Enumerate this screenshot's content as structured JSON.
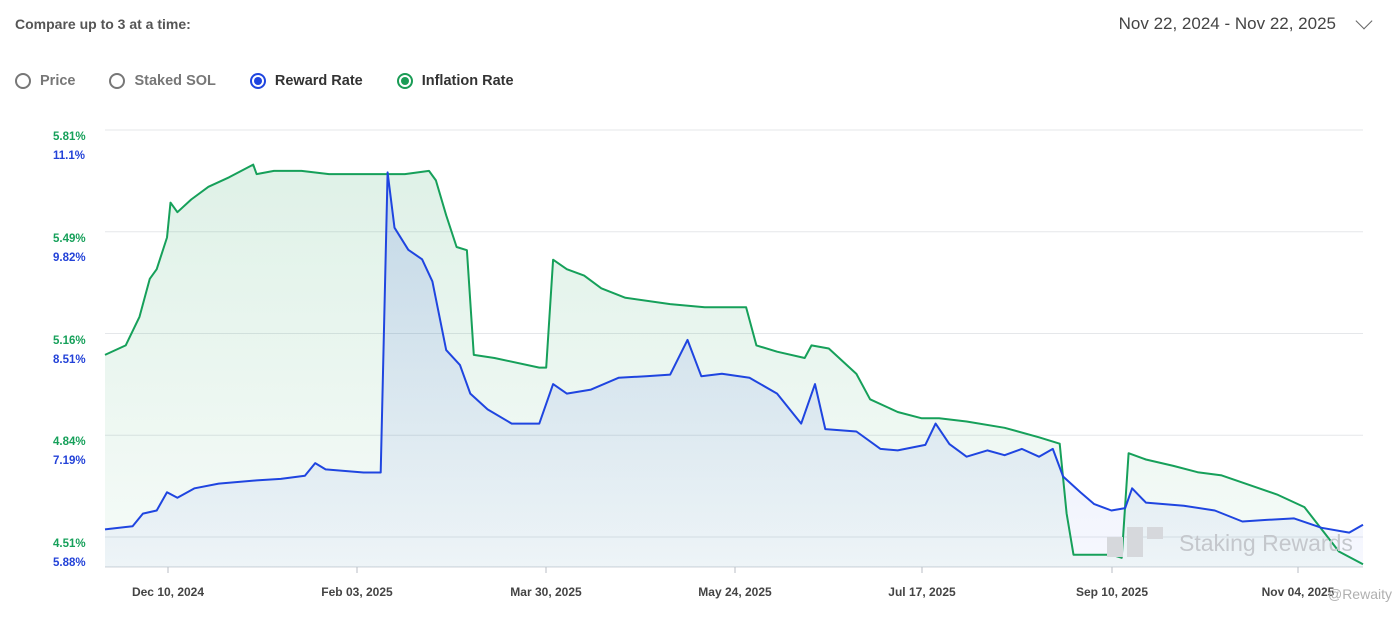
{
  "header": {
    "compare_label": "Compare up to 3 at a time:"
  },
  "date_range": {
    "text": "Nov 22, 2024 - Nov 22, 2025"
  },
  "toggles": [
    {
      "label": "Price",
      "checked": false
    },
    {
      "label": "Staked SOL",
      "checked": false
    },
    {
      "label": "Reward Rate",
      "checked": true,
      "color": "#1f45e0"
    },
    {
      "label": "Inflation Rate",
      "checked": true,
      "color": "#1a9c55"
    }
  ],
  "watermark": {
    "brand": "Staking Rewards",
    "handle": "@Rewaity"
  },
  "chart_data": {
    "type": "area",
    "x_ticks": [
      "Dec 10, 2024",
      "Feb 03, 2025",
      "Mar 30, 2025",
      "May 24, 2025",
      "Jul 17, 2025",
      "Sep 10, 2025",
      "Nov 04, 2025"
    ],
    "y_left_inflation_ticks": [
      "5.81%",
      "5.49%",
      "5.16%",
      "4.84%",
      "4.51%"
    ],
    "y_left_reward_ticks": [
      "11.1%",
      "9.82%",
      "8.51%",
      "7.19%",
      "5.88%"
    ],
    "inflation_ylim": [
      4.51,
      5.81
    ],
    "reward_ylim": [
      5.88,
      11.1
    ],
    "grid": true,
    "x_start": "2024-11-22",
    "x_end": "2025-11-22",
    "series": [
      {
        "name": "Inflation Rate",
        "color": "#16a05a",
        "points": [
          [
            "2024-11-22",
            5.16
          ],
          [
            "2024-11-28",
            5.19
          ],
          [
            "2024-12-02",
            5.28
          ],
          [
            "2024-12-05",
            5.4
          ],
          [
            "2024-12-07",
            5.43
          ],
          [
            "2024-12-10",
            5.53
          ],
          [
            "2024-12-11",
            5.64
          ],
          [
            "2024-12-13",
            5.61
          ],
          [
            "2024-12-17",
            5.65
          ],
          [
            "2024-12-22",
            5.69
          ],
          [
            "2024-12-28",
            5.72
          ],
          [
            "2025-01-04",
            5.76
          ],
          [
            "2025-01-05",
            5.73
          ],
          [
            "2025-01-10",
            5.74
          ],
          [
            "2025-01-18",
            5.74
          ],
          [
            "2025-01-26",
            5.73
          ],
          [
            "2025-02-03",
            5.73
          ],
          [
            "2025-02-10",
            5.73
          ],
          [
            "2025-02-17",
            5.73
          ],
          [
            "2025-02-24",
            5.74
          ],
          [
            "2025-02-26",
            5.71
          ],
          [
            "2025-03-01",
            5.6
          ],
          [
            "2025-03-04",
            5.5
          ],
          [
            "2025-03-07",
            5.49
          ],
          [
            "2025-03-09",
            5.16
          ],
          [
            "2025-03-15",
            5.15
          ],
          [
            "2025-03-28",
            5.12
          ],
          [
            "2025-03-30",
            5.12
          ],
          [
            "2025-04-01",
            5.46
          ],
          [
            "2025-04-05",
            5.43
          ],
          [
            "2025-04-10",
            5.41
          ],
          [
            "2025-04-15",
            5.37
          ],
          [
            "2025-04-22",
            5.34
          ],
          [
            "2025-05-05",
            5.32
          ],
          [
            "2025-05-15",
            5.31
          ],
          [
            "2025-05-27",
            5.31
          ],
          [
            "2025-05-30",
            5.19
          ],
          [
            "2025-06-05",
            5.17
          ],
          [
            "2025-06-13",
            5.15
          ],
          [
            "2025-06-15",
            5.19
          ],
          [
            "2025-06-20",
            5.18
          ],
          [
            "2025-06-28",
            5.1
          ],
          [
            "2025-07-02",
            5.02
          ],
          [
            "2025-07-10",
            4.98
          ],
          [
            "2025-07-17",
            4.96
          ],
          [
            "2025-07-22",
            4.96
          ],
          [
            "2025-07-30",
            4.95
          ],
          [
            "2025-08-10",
            4.93
          ],
          [
            "2025-08-20",
            4.9
          ],
          [
            "2025-08-26",
            4.88
          ],
          [
            "2025-08-28",
            4.66
          ],
          [
            "2025-08-30",
            4.53
          ],
          [
            "2025-09-10",
            4.53
          ],
          [
            "2025-09-13",
            4.52
          ],
          [
            "2025-09-15",
            4.85
          ],
          [
            "2025-09-20",
            4.83
          ],
          [
            "2025-09-28",
            4.81
          ],
          [
            "2025-10-05",
            4.79
          ],
          [
            "2025-10-12",
            4.78
          ],
          [
            "2025-10-20",
            4.75
          ],
          [
            "2025-10-28",
            4.72
          ],
          [
            "2025-11-05",
            4.68
          ],
          [
            "2025-11-15",
            4.54
          ],
          [
            "2025-11-22",
            4.5
          ]
        ]
      },
      {
        "name": "Reward Rate",
        "color": "#1f45e0",
        "points": [
          [
            "2024-11-22",
            6.28
          ],
          [
            "2024-11-30",
            6.32
          ],
          [
            "2024-12-03",
            6.48
          ],
          [
            "2024-12-07",
            6.52
          ],
          [
            "2024-12-10",
            6.75
          ],
          [
            "2024-12-13",
            6.68
          ],
          [
            "2024-12-18",
            6.8
          ],
          [
            "2024-12-25",
            6.86
          ],
          [
            "2025-01-05",
            6.9
          ],
          [
            "2025-01-12",
            6.92
          ],
          [
            "2025-01-19",
            6.96
          ],
          [
            "2025-01-22",
            7.12
          ],
          [
            "2025-01-25",
            7.04
          ],
          [
            "2025-02-05",
            7.0
          ],
          [
            "2025-02-10",
            7.0
          ],
          [
            "2025-02-12",
            10.8
          ],
          [
            "2025-02-14",
            10.1
          ],
          [
            "2025-02-18",
            9.82
          ],
          [
            "2025-02-22",
            9.7
          ],
          [
            "2025-02-25",
            9.42
          ],
          [
            "2025-03-01",
            8.55
          ],
          [
            "2025-03-05",
            8.36
          ],
          [
            "2025-03-08",
            8.0
          ],
          [
            "2025-03-13",
            7.8
          ],
          [
            "2025-03-20",
            7.62
          ],
          [
            "2025-03-28",
            7.62
          ],
          [
            "2025-04-01",
            8.12
          ],
          [
            "2025-04-05",
            8.0
          ],
          [
            "2025-04-12",
            8.05
          ],
          [
            "2025-04-20",
            8.2
          ],
          [
            "2025-04-28",
            8.22
          ],
          [
            "2025-05-05",
            8.24
          ],
          [
            "2025-05-10",
            8.68
          ],
          [
            "2025-05-14",
            8.22
          ],
          [
            "2025-05-20",
            8.25
          ],
          [
            "2025-05-28",
            8.2
          ],
          [
            "2025-06-05",
            8.0
          ],
          [
            "2025-06-12",
            7.62
          ],
          [
            "2025-06-16",
            8.12
          ],
          [
            "2025-06-19",
            7.55
          ],
          [
            "2025-06-28",
            7.52
          ],
          [
            "2025-07-05",
            7.3
          ],
          [
            "2025-07-10",
            7.28
          ],
          [
            "2025-07-18",
            7.35
          ],
          [
            "2025-07-21",
            7.62
          ],
          [
            "2025-07-25",
            7.36
          ],
          [
            "2025-07-30",
            7.2
          ],
          [
            "2025-08-05",
            7.28
          ],
          [
            "2025-08-10",
            7.22
          ],
          [
            "2025-08-15",
            7.3
          ],
          [
            "2025-08-20",
            7.2
          ],
          [
            "2025-08-24",
            7.3
          ],
          [
            "2025-08-27",
            6.95
          ],
          [
            "2025-09-01",
            6.75
          ],
          [
            "2025-09-05",
            6.6
          ],
          [
            "2025-09-10",
            6.52
          ],
          [
            "2025-09-14",
            6.55
          ],
          [
            "2025-09-16",
            6.8
          ],
          [
            "2025-09-20",
            6.62
          ],
          [
            "2025-10-01",
            6.58
          ],
          [
            "2025-10-10",
            6.52
          ],
          [
            "2025-10-18",
            6.38
          ],
          [
            "2025-10-25",
            6.4
          ],
          [
            "2025-11-02",
            6.42
          ],
          [
            "2025-11-10",
            6.3
          ],
          [
            "2025-11-18",
            6.24
          ],
          [
            "2025-11-22",
            6.34
          ]
        ]
      }
    ]
  }
}
